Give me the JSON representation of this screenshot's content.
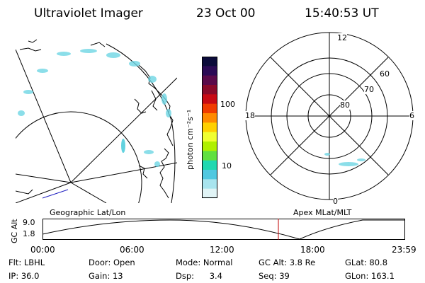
{
  "header": {
    "title": "Ultraviolet Imager",
    "date": "23 Oct 00",
    "time": "15:40:53 UT"
  },
  "colorbar": {
    "unit_label": "photon cm⁻²s⁻¹",
    "ticks": [
      "100",
      "10"
    ],
    "colors": [
      "#0b0b3a",
      "#2b0a55",
      "#5a0a4a",
      "#8a0a2a",
      "#c80a14",
      "#f03c00",
      "#ff8a00",
      "#ffd000",
      "#f0ff30",
      "#b0f000",
      "#60e040",
      "#20d8b0",
      "#50c8e0",
      "#a8e4ee",
      "#e0f4f6"
    ]
  },
  "left_panel": {
    "label": "Geographic Lat/Lon"
  },
  "right_panel": {
    "label": "Apex MLat/MLT",
    "mlt_labels": {
      "top": "12",
      "left": "18",
      "right": "6",
      "bottom": "0"
    },
    "mlat_labels": [
      "60",
      "70",
      "80"
    ]
  },
  "timeline": {
    "ylabel": "GC Alt",
    "yticks": [
      "9.0",
      "1.8"
    ],
    "xticks": [
      "00:00",
      "06:00",
      "12:00",
      "18:00",
      "23:59"
    ],
    "cursor_time": "15:40:53",
    "cursor_color": "#c00000"
  },
  "footer": {
    "flt_label": "Flt:",
    "flt_value": "LBHL",
    "ip_label": "IP:",
    "ip_value": "36.0",
    "door_label": "Door:",
    "door_value": "Open",
    "gain_label": "Gain:",
    "gain_value": "13",
    "mode_label": "Mode:",
    "mode_value": "Normal",
    "dsp_label": "Dsp:",
    "dsp_value": "3.4",
    "gcalt_label": "GC Alt:",
    "gcalt_value": "3.8 Re",
    "seq_label": "Seq:",
    "seq_value": "39",
    "glat_label": "GLat:",
    "glat_value": "80.8",
    "glon_label": "GLon:",
    "glon_value": "163.1"
  }
}
